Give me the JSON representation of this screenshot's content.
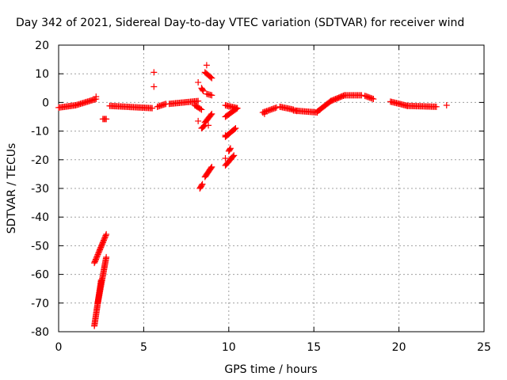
{
  "chart_data": {
    "type": "scatter",
    "title": "Day 342 of 2021, Sidereal Day-to-day VTEC variation (SDTVAR) for receiver wind",
    "xlabel": "GPS time / hours",
    "ylabel": "SDTVAR / TECUs",
    "xlim": [
      0,
      25
    ],
    "ylim": [
      -80,
      20
    ],
    "xticks": [
      0,
      5,
      10,
      15,
      20,
      25
    ],
    "yticks": [
      -80,
      -70,
      -60,
      -50,
      -40,
      -30,
      -20,
      -10,
      0,
      10,
      20
    ],
    "grid": true,
    "marker": "plus",
    "color": "#ff0000",
    "segments": [
      {
        "x0": 0.0,
        "y0": -1.8,
        "x1": 1.0,
        "y1": -1.0
      },
      {
        "x0": 1.0,
        "y0": -1.0,
        "x1": 2.2,
        "y1": 1.2
      },
      {
        "x0": 2.6,
        "y0": -5.8,
        "x1": 2.8,
        "y1": -5.8
      },
      {
        "x0": 3.0,
        "y0": -1.2,
        "x1": 5.5,
        "y1": -2.0
      },
      {
        "x0": 5.8,
        "y0": -1.5,
        "x1": 6.3,
        "y1": -0.5
      },
      {
        "x0": 6.5,
        "y0": -0.5,
        "x1": 8.2,
        "y1": 0.5
      },
      {
        "x0": 12.0,
        "y0": -3.5,
        "x1": 12.8,
        "y1": -1.8
      },
      {
        "x0": 13.0,
        "y0": -1.5,
        "x1": 13.8,
        "y1": -2.5
      },
      {
        "x0": 13.8,
        "y0": -2.8,
        "x1": 15.2,
        "y1": -3.5
      },
      {
        "x0": 15.2,
        "y0": -3.2,
        "x1": 16.0,
        "y1": 0.5
      },
      {
        "x0": 16.0,
        "y0": 0.5,
        "x1": 16.8,
        "y1": 2.5
      },
      {
        "x0": 16.8,
        "y0": 2.5,
        "x1": 17.8,
        "y1": 2.5
      },
      {
        "x0": 18.0,
        "y0": 2.3,
        "x1": 18.5,
        "y1": 1.2
      },
      {
        "x0": 19.5,
        "y0": 0.3,
        "x1": 20.5,
        "y1": -1.2
      },
      {
        "x0": 20.5,
        "y0": -1.2,
        "x1": 22.2,
        "y1": -1.5
      },
      {
        "x0": 2.1,
        "y0": -56.0,
        "x1": 2.8,
        "y1": -46.0
      },
      {
        "x0": 2.1,
        "y0": -78.0,
        "x1": 2.5,
        "y1": -62.0
      },
      {
        "x0": 2.3,
        "y0": -70.0,
        "x1": 2.8,
        "y1": -54.0
      },
      {
        "x0": 8.3,
        "y0": -30.0,
        "x1": 8.45,
        "y1": -28.5
      },
      {
        "x0": 8.6,
        "y0": -26.0,
        "x1": 9.0,
        "y1": -22.5
      },
      {
        "x0": 9.8,
        "y0": -22.0,
        "x1": 10.3,
        "y1": -18.5
      },
      {
        "x0": 10.0,
        "y0": -17.0,
        "x1": 10.1,
        "y1": -16.0
      },
      {
        "x0": 8.4,
        "y0": -9.0,
        "x1": 8.6,
        "y1": -8.0
      },
      {
        "x0": 8.6,
        "y0": -7.0,
        "x1": 9.0,
        "y1": -4.0
      },
      {
        "x0": 9.8,
        "y0": -12.0,
        "x1": 10.4,
        "y1": -9.0
      },
      {
        "x0": 8.0,
        "y0": -1.0,
        "x1": 8.4,
        "y1": -2.5
      },
      {
        "x0": 9.8,
        "y0": -5.0,
        "x1": 10.5,
        "y1": -2.0
      },
      {
        "x0": 9.8,
        "y0": -1.0,
        "x1": 10.5,
        "y1": -2.0
      },
      {
        "x0": 8.6,
        "y0": 10.5,
        "x1": 9.0,
        "y1": 8.5
      },
      {
        "x0": 8.4,
        "y0": 5.0,
        "x1": 8.5,
        "y1": 4.0
      },
      {
        "x0": 8.7,
        "y0": 3.0,
        "x1": 9.0,
        "y1": 2.5
      }
    ],
    "points": [
      {
        "x": 5.6,
        "y": 10.5
      },
      {
        "x": 5.6,
        "y": 5.5
      },
      {
        "x": 8.7,
        "y": 13.0
      },
      {
        "x": 8.2,
        "y": 7.0
      },
      {
        "x": 8.2,
        "y": -6.5
      },
      {
        "x": 9.8,
        "y": -19.5
      },
      {
        "x": 9.8,
        "y": -11.5
      },
      {
        "x": 8.8,
        "y": -8.0
      },
      {
        "x": 22.8,
        "y": -1.0
      },
      {
        "x": 14.0,
        "y": -3.0
      },
      {
        "x": 2.2,
        "y": 2.0
      },
      {
        "x": 12.1,
        "y": -4.0
      }
    ]
  }
}
